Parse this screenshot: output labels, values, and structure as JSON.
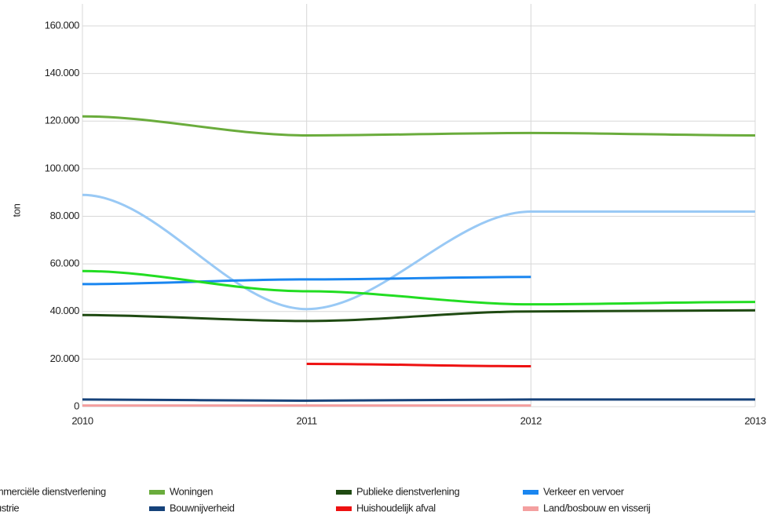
{
  "chart_data": {
    "type": "line",
    "y_label": "ton",
    "x": [
      2010,
      2011,
      2012,
      2013
    ],
    "xlim": [
      2010,
      2013
    ],
    "xticks": [
      2010,
      2011,
      2012,
      2013
    ],
    "ylim": [
      0,
      160000
    ],
    "yticks": [
      0,
      {
        "value": 20000,
        "label": "20.000"
      },
      {
        "value": 40000,
        "label": "40.000"
      },
      {
        "value": 60000,
        "label": "60.000"
      },
      {
        "value": 80000,
        "label": "80.000"
      },
      {
        "value": 100000,
        "label": "100.000"
      },
      {
        "value": 120000,
        "label": "120.000"
      },
      {
        "value": 140000,
        "label": "140.000"
      },
      {
        "value": 160000,
        "label": "160.000"
      }
    ],
    "grid": true,
    "legend": "bottom",
    "series": [
      {
        "name": "Commerciële dienstverlening",
        "color": "#99c9f5",
        "values": [
          89000,
          41000,
          82000,
          82000
        ]
      },
      {
        "name": "Woningen",
        "color": "#6aac3c",
        "values": [
          122000,
          114000,
          115000,
          114000
        ]
      },
      {
        "name": "Publieke dienstverlening",
        "color": "#1f4a12",
        "values": [
          38500,
          36000,
          40000,
          40500
        ]
      },
      {
        "name": "Verkeer en vervoer",
        "color": "#1a86f0",
        "values": [
          51500,
          53500,
          54500,
          null
        ]
      },
      {
        "name": "Industrie",
        "color": "#22dd22",
        "values": [
          57000,
          48500,
          43000,
          44000
        ]
      },
      {
        "name": "Bouwnijverheid",
        "color": "#16427a",
        "values": [
          3000,
          2500,
          3000,
          3000
        ]
      },
      {
        "name": "Huishoudelijk afval",
        "color": "#ee1111",
        "values": [
          null,
          18000,
          17000,
          null
        ]
      },
      {
        "name": "Land/bosbouw en visserij",
        "color": "#f4a0a0",
        "values": [
          500,
          500,
          500,
          null
        ]
      }
    ]
  }
}
